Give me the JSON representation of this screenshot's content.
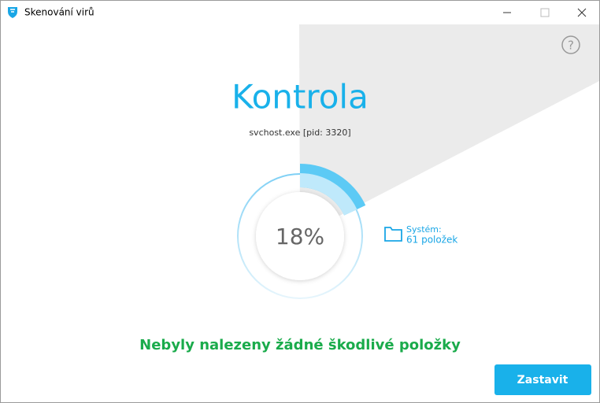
{
  "window": {
    "title": "Skenování virů"
  },
  "help": "?",
  "heading": "Kontrola",
  "process": "svchost.exe [pid: 3320]",
  "progress": {
    "value": 18,
    "label": "18%"
  },
  "location": {
    "label": "Systém:",
    "count": "61 položek"
  },
  "status": "Nebyly nalezeny žádné škodlivé položky",
  "button": "Zastavit"
}
